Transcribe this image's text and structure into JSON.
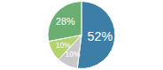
{
  "chart_data": {
    "type": "pie",
    "values": [
      52,
      10,
      10,
      28
    ],
    "value_labels": [
      "52%",
      "10%",
      "10%",
      "28%"
    ],
    "colors": [
      "#3d7ea6",
      "#c9c9c9",
      "#b3d36b",
      "#6aae72"
    ],
    "data_labels": true
  }
}
